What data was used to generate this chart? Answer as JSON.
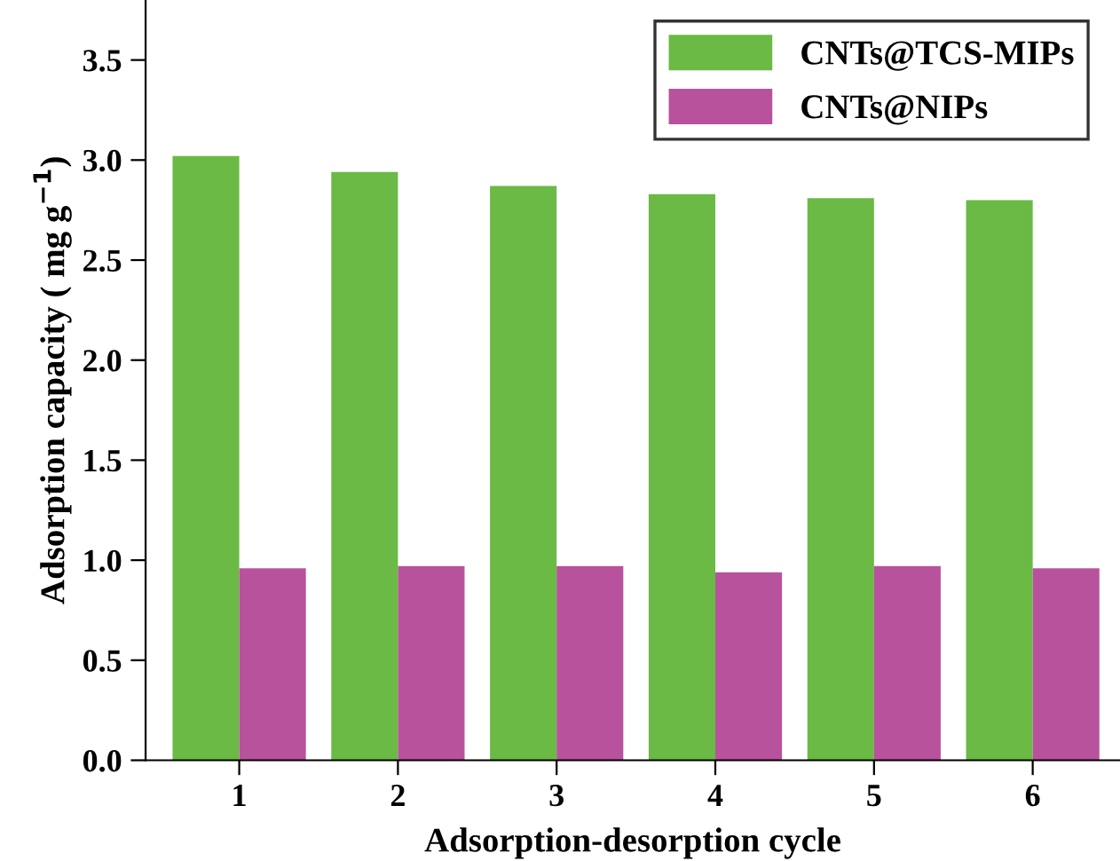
{
  "chart_data": {
    "type": "bar",
    "xlabel": "Adsorption-desorption cycle",
    "ylabel": "Adsorption capacity ( mg g$^{−1}$)",
    "categories": [
      "1",
      "2",
      "3",
      "4",
      "5",
      "6"
    ],
    "series": [
      {
        "name": "CNTs@TCS-MIPs",
        "color": "#6aba45",
        "values": [
          3.02,
          2.94,
          2.87,
          2.83,
          2.81,
          2.8
        ]
      },
      {
        "name": "CNTs@NIPs",
        "color": "#b8529c",
        "values": [
          0.96,
          0.97,
          0.97,
          0.94,
          0.97,
          0.96
        ]
      }
    ],
    "ylim": [
      0,
      3.8
    ],
    "yticks": [
      {
        "value": 0,
        "label": "0.0"
      },
      {
        "value": 0.5,
        "label": "0.5"
      },
      {
        "value": 1,
        "label": "1.0"
      },
      {
        "value": 1.5,
        "label": "1.5"
      },
      {
        "value": 2,
        "label": "2.0"
      },
      {
        "value": 2.5,
        "label": "2.5"
      },
      {
        "value": 3,
        "label": "3.0"
      },
      {
        "value": 3.5,
        "label": "3.5"
      }
    ],
    "legend": "top right",
    "grid": false
  }
}
